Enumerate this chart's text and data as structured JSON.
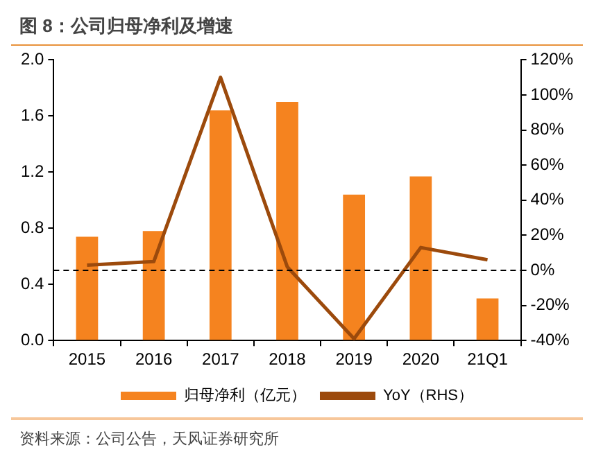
{
  "chart_data": {
    "type": "bar",
    "title": "图 8：公司归母净利及增速",
    "categories": [
      "2015",
      "2016",
      "2017",
      "2018",
      "2019",
      "2020",
      "21Q1"
    ],
    "series": [
      {
        "name": "归母净利（亿元）",
        "color": "#f5831f",
        "values": [
          0.74,
          0.78,
          1.64,
          1.7,
          1.04,
          1.17,
          0.3
        ]
      },
      {
        "name": "YoY（RHS）",
        "type": "line",
        "axis": "y2",
        "color": "#9c4a0c",
        "values": [
          3,
          5,
          110,
          2,
          -39,
          13,
          6
        ]
      }
    ],
    "ylim": [
      0,
      2
    ],
    "yticks": [
      {
        "value": 0,
        "label": "0.0"
      },
      {
        "value": 0.4,
        "label": "0.4"
      },
      {
        "value": 0.8,
        "label": "0.8"
      },
      {
        "value": 1.2,
        "label": "1.2"
      },
      {
        "value": 1.6,
        "label": "1.6"
      },
      {
        "value": 2,
        "label": "2.0"
      }
    ],
    "y2lim": [
      -40,
      120
    ],
    "y2ticks": [
      {
        "value": -40,
        "label": "-40%"
      },
      {
        "value": -20,
        "label": "-20%"
      },
      {
        "value": 0,
        "label": "0%"
      },
      {
        "value": 20,
        "label": "20%"
      },
      {
        "value": 40,
        "label": "40%"
      },
      {
        "value": 60,
        "label": "60%"
      },
      {
        "value": 80,
        "label": "80%"
      },
      {
        "value": 100,
        "label": "100%"
      },
      {
        "value": 120,
        "label": "120%"
      }
    ],
    "ref_lines": [
      {
        "axis": "y2",
        "value": 0,
        "color": "#000000",
        "line_style": "dashed"
      }
    ],
    "grid": false,
    "legend": "bottom",
    "marker": "none",
    "annotations": [
      "资料来源：公司公告，天风证券研究所"
    ]
  }
}
